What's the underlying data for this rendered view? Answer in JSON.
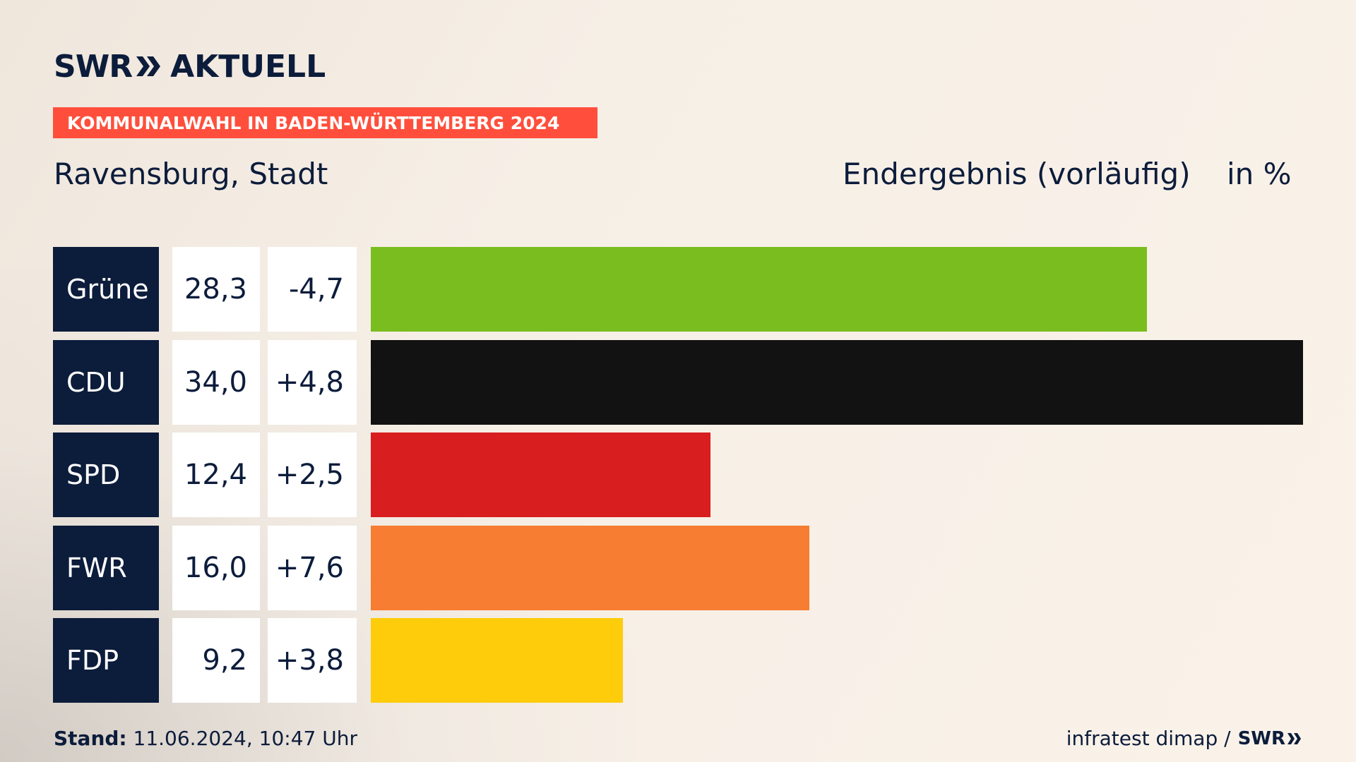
{
  "header": {
    "brand_left": "SWR",
    "brand_right": "AKTUELL",
    "banner": "KOMMUNALWAHL IN BADEN-WÜRTTEMBERG 2024",
    "place": "Ravensburg, Stadt",
    "result_label": "Endergebnis (vorläufig)",
    "unit_label": "in %"
  },
  "colors": {
    "navy": "#0c1c3b",
    "banner": "#ff4f3c"
  },
  "chart_data": {
    "type": "bar",
    "orientation": "horizontal",
    "xlim": [
      0,
      34
    ],
    "categories": [
      "Grüne",
      "CDU",
      "SPD",
      "FWR",
      "FDP"
    ],
    "values": [
      28.3,
      34.0,
      12.4,
      16.0,
      9.2
    ],
    "value_labels": [
      "28,3",
      "34,0",
      "12,4",
      "16,0",
      "9,2"
    ],
    "diffs": [
      -4.7,
      4.8,
      2.5,
      7.6,
      3.8
    ],
    "diff_labels": [
      "-4,7",
      "+4,8",
      "+2,5",
      "+7,6",
      "+3,8"
    ],
    "bar_colors": [
      "#7abd1e",
      "#121212",
      "#d81e1e",
      "#f77d33",
      "#fecc0b"
    ]
  },
  "footer": {
    "stand_label": "Stand:",
    "stand_value": " 11.06.2024, 10:47 Uhr",
    "source": "infratest dimap /",
    "source_brand": "SWR"
  }
}
